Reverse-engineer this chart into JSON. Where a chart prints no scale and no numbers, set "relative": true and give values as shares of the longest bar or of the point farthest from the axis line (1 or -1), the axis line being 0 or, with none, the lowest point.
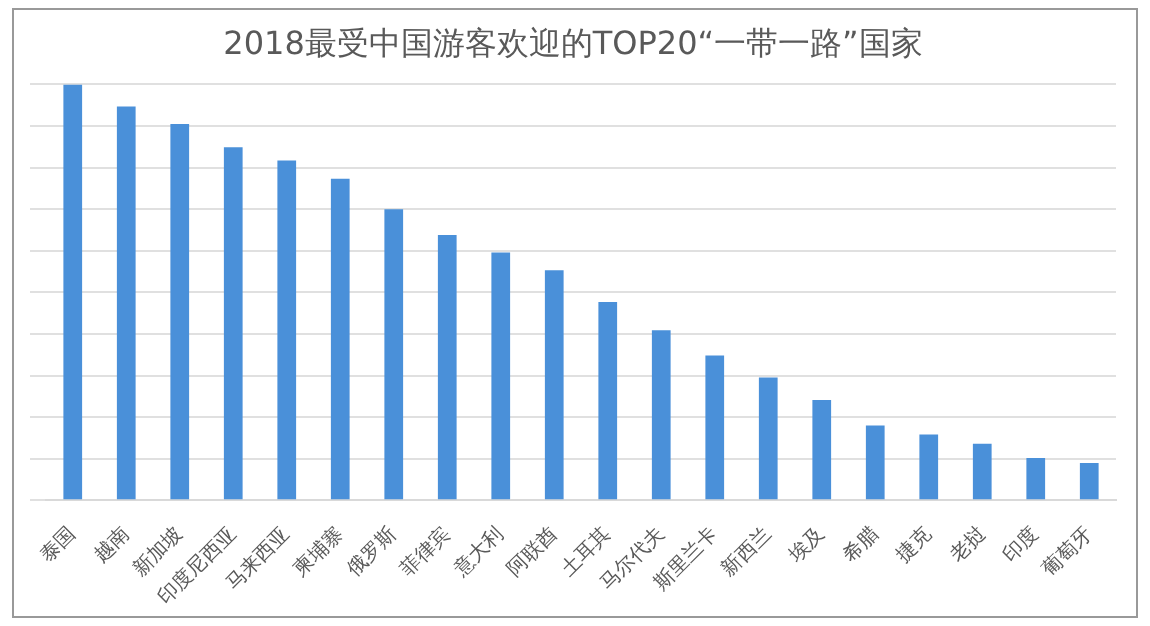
{
  "chart_data": {
    "type": "bar",
    "title": "2018最受中国游客欢迎的TOP20“一带一路”国家",
    "categories": [
      "泰国",
      "越南",
      "新加坡",
      "印度尼西亚",
      "马来西亚",
      "柬埔寨",
      "俄罗斯",
      "菲律宾",
      "意大利",
      "阿联酋",
      "土耳其",
      "马尔代夫",
      "斯里兰卡",
      "新西兰",
      "埃及",
      "希腊",
      "捷克",
      "老挝",
      "印度",
      "葡萄牙"
    ],
    "values": [
      1,
      0.947,
      0.905,
      0.849,
      0.817,
      0.773,
      0.7,
      0.638,
      0.596,
      0.553,
      0.477,
      0.409,
      0.348,
      0.295,
      0.241,
      0.18,
      0.158,
      0.136,
      0.102,
      0.09
    ],
    "color": "#4a90d9",
    "relative": true,
    "grid": "y"
  }
}
